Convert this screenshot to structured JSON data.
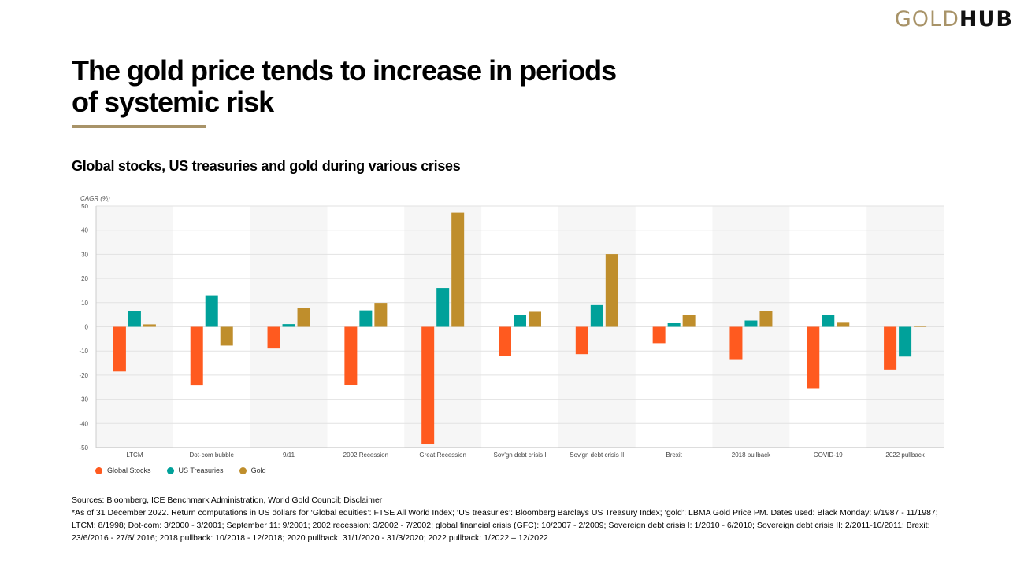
{
  "logo": {
    "part1": "GOLD",
    "part2": "HUB"
  },
  "header": {
    "title": "The gold price tends to increase in periods of systemic risk",
    "subtitle": "Global stocks, US treasuries and gold during various crises"
  },
  "colors": {
    "accent": "#a89368",
    "global_stocks": "#ff5a1f",
    "us_treasuries": "#00a19a",
    "gold": "#bf8e2c",
    "band": "#f6f6f6",
    "grid": "#e2e2e2"
  },
  "chart_data": {
    "type": "bar",
    "title": "Global stocks, US treasuries and gold during various crises",
    "xlabel": "",
    "ylabel": "CAGR (%)",
    "ylim": [
      -50,
      50
    ],
    "yticks": [
      50,
      40,
      30,
      20,
      10,
      0,
      -10,
      -20,
      -30,
      -40,
      -50
    ],
    "grid": true,
    "legend_position": "bottom-left",
    "categories": [
      "LTCM",
      "Dot-com bubble",
      "9/11",
      "2002 Recession",
      "Great Recession",
      "Sov'gn debt crisis I",
      "Sov'gn debt crisis II",
      "Brexit",
      "2018 pullback",
      "COVID-19",
      "2022 pullback"
    ],
    "series": [
      {
        "name": "Global Stocks",
        "color": "#ff5a1f",
        "values": [
          -18.5,
          -24.3,
          -9.0,
          -24.1,
          -48.7,
          -12.0,
          -11.3,
          -6.8,
          -13.7,
          -25.4,
          -17.7
        ]
      },
      {
        "name": "US Treasuries",
        "color": "#00a19a",
        "values": [
          6.5,
          13.0,
          1.1,
          6.8,
          16.1,
          4.8,
          9.0,
          1.6,
          2.6,
          5.0,
          -12.3
        ]
      },
      {
        "name": "Gold",
        "color": "#bf8e2c",
        "values": [
          1.0,
          -7.8,
          7.7,
          9.9,
          47.2,
          6.2,
          30.1,
          5.0,
          6.5,
          2.0,
          0.3
        ]
      }
    ]
  },
  "notes": {
    "sources": "Sources: Bloomberg, ICE Benchmark Administration, World Gold Council; Disclaimer",
    "footnote": "*As of 31 December 2022. Return computations in US dollars for ‘Global equities’: FTSE All World Index; ‘US treasuries’: Bloomberg Barclays US Treasury Index; ‘gold’: LBMA Gold Price PM. Dates used: Black Monday: 9/1987 - 11/1987; LTCM: 8/1998; Dot-com: 3/2000 - 3/2001; September 11: 9/2001; 2002 recession: 3/2002 - 7/2002; global financial crisis (GFC): 10/2007 - 2/2009; Sovereign debt crisis I: 1/2010 - 6/2010; Sovereign debt crisis II: 2/2011-10/2011; Brexit: 23/6/2016 - 27/6/ 2016; 2018 pullback: 10/2018 - 12/2018; 2020 pullback: 31/1/2020 - 31/3/2020; 2022 pullback: 1/2022 – 12/2022"
  }
}
